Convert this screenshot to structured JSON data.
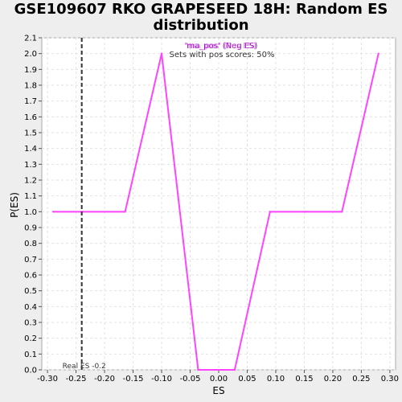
{
  "chart_data": {
    "type": "line",
    "title": "GSE109607 RKO GRAPESEED 18H: Random ES\ndistribution",
    "xlabel": "ES",
    "ylabel": "P(ES)",
    "xlim": [
      -0.31,
      0.31
    ],
    "ylim": [
      0,
      2.1
    ],
    "x_ticks": [
      -0.3,
      -0.25,
      -0.2,
      -0.15,
      -0.1,
      -0.05,
      0.0,
      0.05,
      0.1,
      0.15,
      0.2,
      0.25,
      0.3
    ],
    "x_tick_labels": [
      "-0.30",
      "-0.25",
      "-0.20",
      "-0.15",
      "-0.10",
      "-0.05",
      "0.00",
      "0.05",
      "0.10",
      "0.15",
      "0.20",
      "0.25",
      "0.30"
    ],
    "y_ticks": [
      0.0,
      0.1,
      0.2,
      0.3,
      0.4,
      0.5,
      0.6,
      0.7,
      0.8,
      0.9,
      1.0,
      1.1,
      1.2,
      1.3,
      1.4,
      1.5,
      1.6,
      1.7,
      1.8,
      1.9,
      2.0,
      2.1
    ],
    "y_tick_labels": [
      "0.0",
      "0.1",
      "0.2",
      "0.3",
      "0.4",
      "0.5",
      "0.6",
      "0.7",
      "0.8",
      "0.9",
      "1.0",
      "1.1",
      "1.2",
      "1.3",
      "1.4",
      "1.5",
      "1.6",
      "1.7",
      "1.8",
      "1.9",
      "2.0",
      "2.1"
    ],
    "grid": true,
    "series": [
      {
        "name": "'ma_pos' (Neg ES)",
        "color": "#ff44ff",
        "x": [
          -0.29,
          -0.238,
          -0.164,
          -0.1,
          -0.036,
          0.028,
          0.09,
          0.152,
          0.216,
          0.28
        ],
        "y": [
          1.0,
          1.0,
          1.0,
          2.0,
          0.0,
          0.0,
          1.0,
          1.0,
          1.0,
          2.0
        ]
      }
    ],
    "overlap_label": "'ma_pos' (Pos ES)",
    "overlap_color": "#ff44ff",
    "subtitle": "Sets with pos scores: 50%",
    "real_es": {
      "value": -0.24,
      "label": "Real ES -0.2"
    }
  }
}
